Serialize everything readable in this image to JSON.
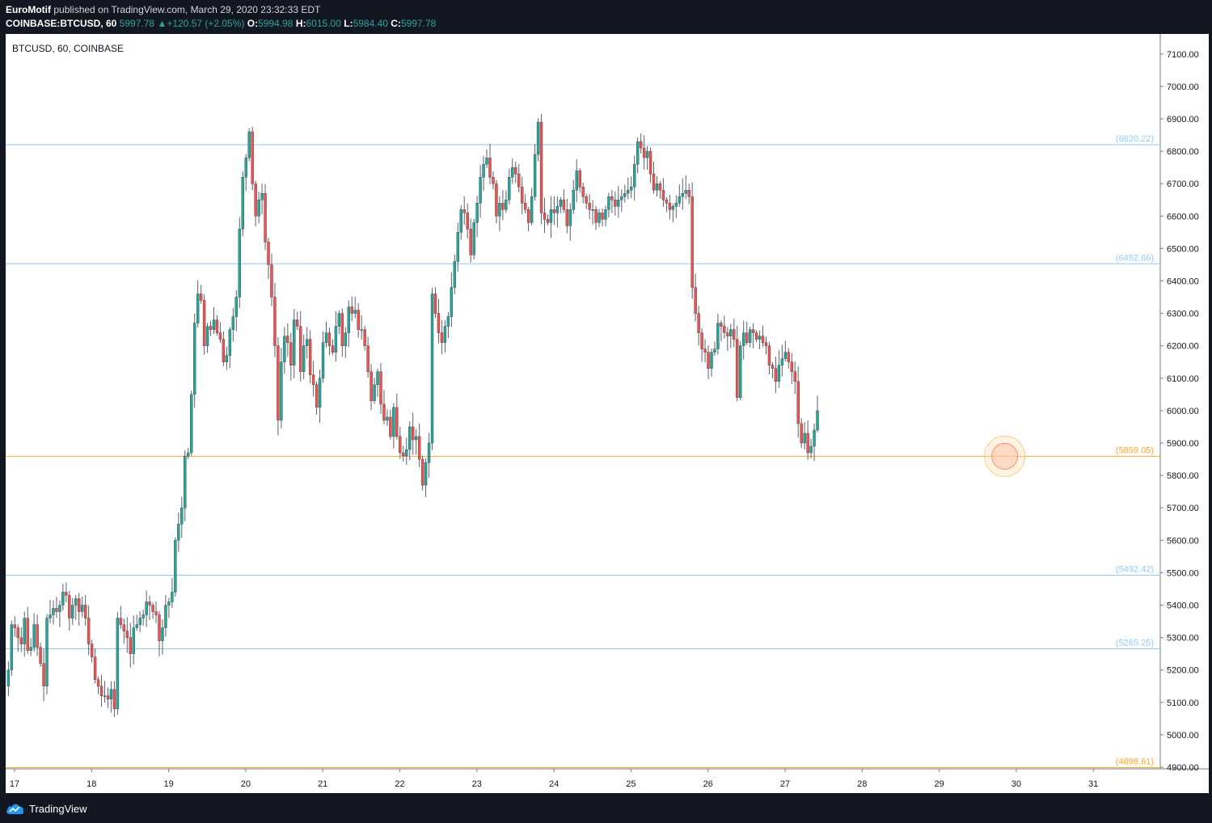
{
  "header": {
    "author": "EuroMotif",
    "published_text": "published on TradingView.com, March 29, 2020 23:32:33 EDT",
    "symbol": "COINBASE:BTCUSD, 60",
    "last": "5997.78",
    "change": "+120.57 (+2.05%)",
    "o_label": "O:",
    "o_value": "5994.98",
    "h_label": "H:",
    "h_value": "6015.00",
    "l_label": "L:",
    "l_value": "5984.40",
    "c_label": "C:",
    "c_value": "5997.78"
  },
  "chart_data": {
    "type": "candlestick",
    "symbol_label": "BTCUSD, 60, COINBASE",
    "y_range": [
      4870,
      7150
    ],
    "y_ticks": [
      "7100.00",
      "7000.00",
      "6900.00",
      "6800.00",
      "6700.00",
      "6600.00",
      "6500.00",
      "6400.00",
      "6300.00",
      "6200.00",
      "6100.00",
      "6000.00",
      "5900.00",
      "5800.00",
      "5700.00",
      "5600.00",
      "5500.00",
      "5400.00",
      "5300.00",
      "5200.00",
      "5100.00",
      "5000.00",
      "4900.00"
    ],
    "x_ticks": [
      "17",
      "18",
      "19",
      "20",
      "21",
      "22",
      "23",
      "24",
      "25",
      "26",
      "27",
      "28",
      "29",
      "30",
      "31"
    ],
    "levels": [
      {
        "value": 6820.22,
        "label": "(6820.22)",
        "color": "#90caf9"
      },
      {
        "value": 6452.86,
        "label": "(6452.86)",
        "color": "#90caf9"
      },
      {
        "value": 5859.05,
        "label": "(5859.05)",
        "color": "#ffa726"
      },
      {
        "value": 5492.42,
        "label": "(5492.42)",
        "color": "#90caf9"
      },
      {
        "value": 5265.25,
        "label": "(5265.25)",
        "color": "#90caf9"
      },
      {
        "value": 4898.61,
        "label": "(4898.61)",
        "color": "#ffa726"
      }
    ],
    "up_color": "#26a69a",
    "down_color": "#ef5350",
    "highlight_circle_price": 5859.05,
    "highlight_circle_day": 29.85,
    "start_day": 16.92,
    "closes": [
      5200,
      5340,
      5330,
      5300,
      5280,
      5360,
      5260,
      5270,
      5340,
      5270,
      5220,
      5150,
      5360,
      5370,
      5390,
      5380,
      5400,
      5440,
      5430,
      5360,
      5400,
      5420,
      5380,
      5400,
      5360,
      5280,
      5240,
      5170,
      5150,
      5120,
      5120,
      5110,
      5140,
      5080,
      5360,
      5340,
      5320,
      5300,
      5250,
      5330,
      5340,
      5360,
      5370,
      5410,
      5400,
      5380,
      5370,
      5290,
      5330,
      5400,
      5410,
      5440,
      5600,
      5650,
      5700,
      5860,
      5870,
      6050,
      6270,
      6360,
      6340,
      6200,
      6260,
      6250,
      6280,
      6240,
      6220,
      6150,
      6170,
      6250,
      6290,
      6350,
      6560,
      6720,
      6780,
      6860,
      6700,
      6600,
      6650,
      6670,
      6520,
      6450,
      6350,
      6200,
      5970,
      6150,
      6230,
      6210,
      6140,
      6280,
      6260,
      6120,
      6200,
      6220,
      6110,
      6080,
      6010,
      6100,
      6210,
      6240,
      6200,
      6180,
      6260,
      6300,
      6200,
      6240,
      6320,
      6300,
      6310,
      6250,
      6250,
      6200,
      6120,
      6030,
      6080,
      6120,
      6020,
      5970,
      5980,
      5920,
      6010,
      5920,
      5870,
      5860,
      5880,
      5950,
      5910,
      5920,
      5850,
      5770,
      5840,
      5900,
      6360,
      6300,
      6240,
      6210,
      6260,
      6290,
      6380,
      6460,
      6550,
      6620,
      6610,
      6560,
      6480,
      6580,
      6640,
      6720,
      6760,
      6780,
      6720,
      6700,
      6600,
      6640,
      6620,
      6650,
      6720,
      6750,
      6730,
      6690,
      6640,
      6620,
      6580,
      6660,
      6790,
      6890,
      6610,
      6590,
      6580,
      6620,
      6610,
      6630,
      6650,
      6620,
      6570,
      6620,
      6680,
      6740,
      6690,
      6660,
      6640,
      6620,
      6620,
      6580,
      6610,
      6590,
      6620,
      6660,
      6650,
      6630,
      6650,
      6660,
      6670,
      6680,
      6690,
      6760,
      6830,
      6810,
      6780,
      6800,
      6730,
      6680,
      6700,
      6680,
      6650,
      6640,
      6620,
      6630,
      6640,
      6660,
      6670,
      6680,
      6660,
      6380,
      6300,
      6240,
      6190,
      6180,
      6130,
      6180,
      6190,
      6270,
      6260,
      6240,
      6230,
      6250,
      6220,
      6040,
      6200,
      6240,
      6210,
      6250,
      6240,
      6220,
      6230,
      6210,
      6200,
      6140,
      6130,
      6090,
      6140,
      6160,
      6180,
      6150,
      6120,
      6090,
      5960,
      5900,
      5930,
      5870,
      5890,
      5940,
      6000
    ]
  }
}
